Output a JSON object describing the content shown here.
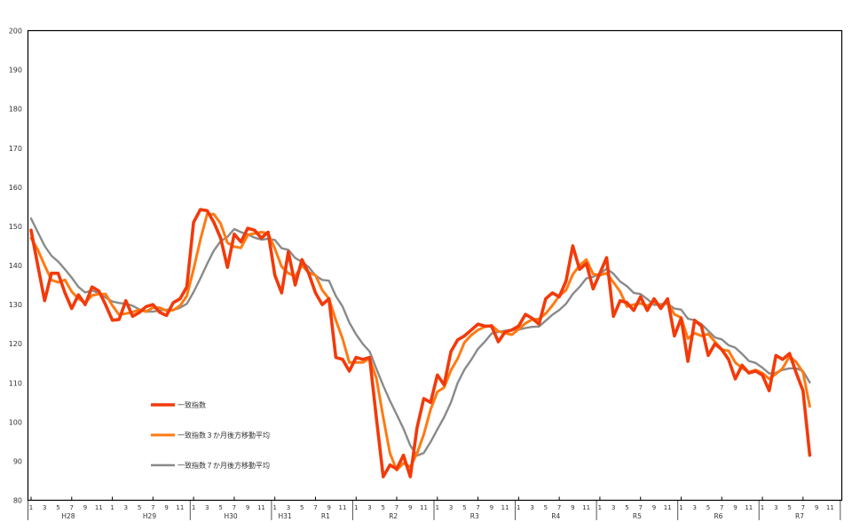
{
  "chart_data": {
    "type": "line",
    "title": "",
    "xlabel": "",
    "ylabel": "",
    "ylim": [
      80,
      200
    ],
    "yticks": [
      "80",
      "90",
      "100",
      "110",
      "120",
      "130",
      "140",
      "150",
      "160",
      "170",
      "180",
      "190",
      "200"
    ],
    "month_labels": [
      "1",
      "3",
      "5",
      "7",
      "9",
      "11"
    ],
    "x_start": "H28-1",
    "num_months": 120,
    "eras": [
      {
        "label": "H28",
        "start_month": 0,
        "span": 12
      },
      {
        "label": "H29",
        "start_month": 12,
        "span": 12
      },
      {
        "label": "H30",
        "start_month": 24,
        "span": 12
      },
      {
        "label": "H31",
        "start_month": 36,
        "span": 4
      },
      {
        "label": "R1",
        "start_month": 40,
        "span": 8
      },
      {
        "label": "R2",
        "start_month": 48,
        "span": 12
      },
      {
        "label": "R3",
        "start_month": 60,
        "span": 12
      },
      {
        "label": "R4",
        "start_month": 72,
        "span": 12
      },
      {
        "label": "R5",
        "start_month": 84,
        "span": 12
      },
      {
        "label": "R6",
        "start_month": 96,
        "span": 12
      },
      {
        "label": "R7",
        "start_month": 108,
        "span": 12
      }
    ],
    "legend_position": "lower-left",
    "series": [
      {
        "name": "一致指数",
        "color": "#f23a0a",
        "values": [
          149,
          140,
          131,
          138,
          138,
          133,
          129,
          132.5,
          130,
          134.5,
          133.5,
          130,
          126,
          126.2,
          131,
          127,
          128,
          129.5,
          130,
          128,
          127.2,
          130.5,
          131.5,
          134.5,
          151,
          154.3,
          154,
          151,
          147,
          139.5,
          148,
          146,
          149.5,
          149,
          147,
          148.5,
          137.5,
          133,
          143.5,
          135,
          141.5,
          138,
          133,
          130,
          131.5,
          116.5,
          116,
          113,
          116.5,
          116,
          116.5,
          101,
          86,
          89,
          88,
          91.5,
          86,
          98.5,
          106,
          105,
          112,
          109.5,
          118,
          121,
          122,
          123.5,
          125,
          124.5,
          124.5,
          120.5,
          123,
          123.5,
          124.5,
          127.5,
          126.5,
          125,
          131.5,
          133,
          132,
          136,
          145,
          139,
          140.5,
          134,
          138,
          142,
          127,
          131,
          130.5,
          128.5,
          132,
          128.5,
          131.5,
          129,
          131.5,
          122,
          126.5,
          115.5,
          126,
          124.5,
          117,
          120,
          118.5,
          116,
          111,
          114.5,
          112.5,
          113,
          112,
          108,
          117,
          116,
          117.5,
          112.5,
          108,
          91.5
        ]
      },
      {
        "name": "一致指数３か月後方移動平均",
        "color": "#ff7a12",
        "values": [
          147,
          144,
          140,
          136.3,
          135.7,
          136.3,
          133.3,
          131.5,
          130.5,
          132.3,
          132.7,
          132.7,
          129.8,
          127.4,
          127.7,
          128.1,
          128.7,
          128.2,
          129.2,
          129.2,
          128.4,
          128.6,
          129.7,
          132.2,
          139,
          146.6,
          153.1,
          153.1,
          150.7,
          145.8,
          144.8,
          144.5,
          147.8,
          148.2,
          148.5,
          148.2,
          144.3,
          139.7,
          138,
          137.2,
          140,
          138.2,
          137.5,
          133.7,
          131.5,
          126,
          121.3,
          115.2,
          115.2,
          115.2,
          116.3,
          111.2,
          101.2,
          92,
          87.7,
          89.5,
          88.5,
          92,
          96.8,
          103.2,
          107.7,
          108.8,
          113.2,
          116.2,
          120.3,
          122.2,
          123.5,
          124.3,
          124.7,
          123.2,
          122.7,
          122.3,
          123.7,
          125.2,
          126.2,
          126.3,
          127.7,
          129.8,
          132.2,
          133.7,
          137.7,
          140,
          141.5,
          137.8,
          137.5,
          138,
          135.7,
          133.3,
          129.5,
          130,
          130.3,
          129.7,
          130.7,
          129.7,
          130.7,
          127.5,
          126.7,
          121.3,
          122.7,
          122,
          122.5,
          120.5,
          118.5,
          118.2,
          115.2,
          113.8,
          112.7,
          113.3,
          112.5,
          111,
          112.3,
          113.7,
          116.8,
          115.3,
          112.7,
          104
        ]
      },
      {
        "name": "一致指数７か月後方移動平均",
        "color": "#8a8a8a",
        "values": [
          152,
          148.5,
          145,
          142.5,
          141,
          139,
          136.9,
          134.5,
          133.1,
          133.6,
          132.9,
          131.8,
          130.8,
          130.4,
          130.2,
          129.7,
          128.8,
          128.2,
          128.2,
          128.5,
          128.7,
          128.6,
          129.2,
          130.2,
          133.2,
          136.7,
          140.4,
          143.8,
          146.2,
          147.3,
          149.3,
          148.5,
          147.9,
          147.1,
          146.6,
          146.8,
          146.5,
          144.4,
          144,
          141.9,
          140.9,
          139.6,
          137.4,
          136.3,
          136.1,
          132.2,
          129.5,
          125.4,
          122.4,
          119.9,
          118,
          113.6,
          109.3,
          105.4,
          101.9,
          98.3,
          94,
          91.4,
          92.1,
          94.9,
          98.1,
          101.2,
          105,
          110,
          113.4,
          115.9,
          118.7,
          120.5,
          122.6,
          123,
          123.3,
          123.5,
          123.6,
          124,
          124.3,
          124.4,
          125.9,
          127.4,
          128.6,
          130.2,
          132.7,
          134.5,
          136.7,
          137.1,
          137.8,
          139.2,
          137.9,
          135.9,
          134.7,
          133,
          132.7,
          131.4,
          129.9,
          130.1,
          130.2,
          129,
          128.7,
          126.4,
          126,
          125,
          123.3,
          121.6,
          121.1,
          119.6,
          119,
          117.4,
          115.6,
          115.1,
          113.9,
          112.4,
          112.6,
          113.3,
          113.7,
          113.7,
          113,
          110.1
        ]
      }
    ]
  }
}
